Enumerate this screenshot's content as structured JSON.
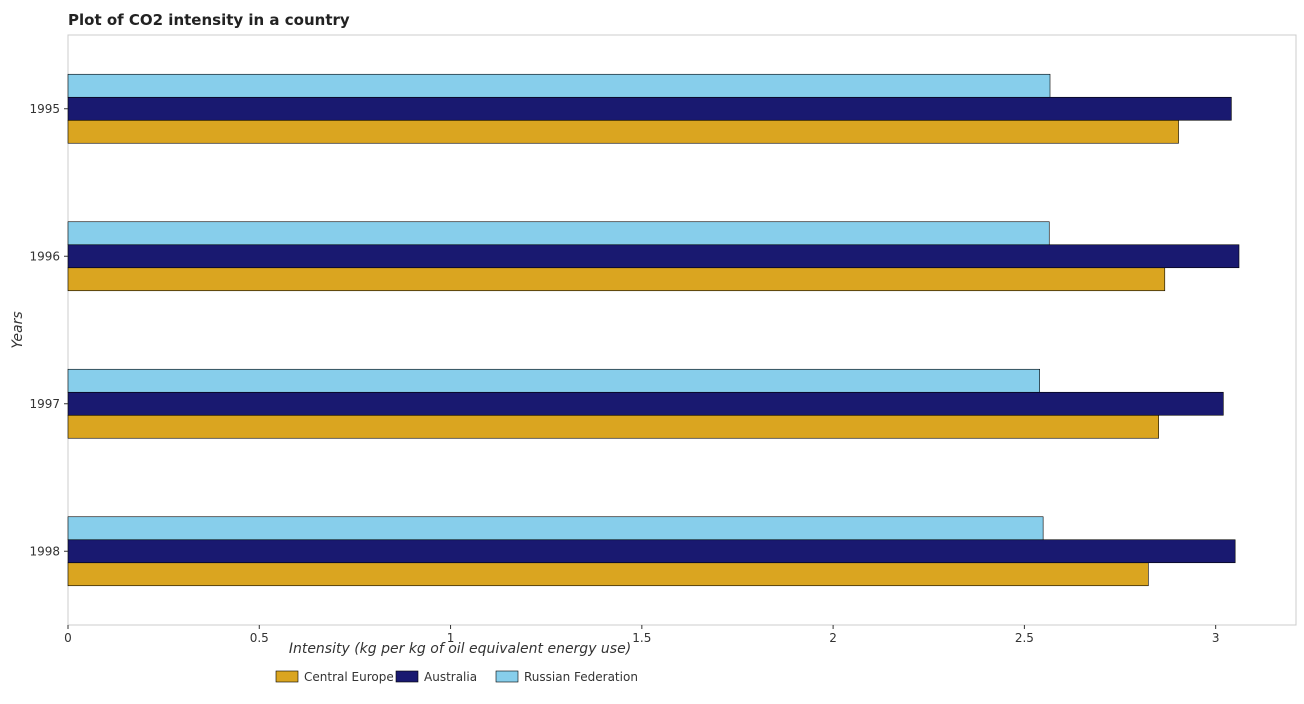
{
  "chart_data": {
    "type": "bar",
    "orientation": "horizontal",
    "title": "Plot of CO2 intensity in a country",
    "xlabel": "Intensity (kg per kg of oil equivalent energy use)",
    "ylabel": "Years",
    "categories": [
      "1995",
      "1996",
      "1997",
      "1998"
    ],
    "series": [
      {
        "name": "Central Europe",
        "color": "#DAA520",
        "values": [
          2.903,
          2.867,
          2.851,
          2.824
        ]
      },
      {
        "name": "Australia",
        "color": "#191970",
        "values": [
          3.041,
          3.061,
          3.02,
          3.051
        ]
      },
      {
        "name": "Russian Federation",
        "color": "#87CEEB",
        "values": [
          2.567,
          2.565,
          2.54,
          2.549
        ]
      }
    ],
    "xlim": [
      0,
      3.21
    ],
    "xticks": [
      0,
      0.5,
      1,
      1.5,
      2,
      2.5,
      3
    ],
    "xtick_labels": [
      "0",
      "0.5",
      "1",
      "1.5",
      "2",
      "2.5",
      "3"
    ],
    "grid": false,
    "legend_position": "bottom-center"
  }
}
